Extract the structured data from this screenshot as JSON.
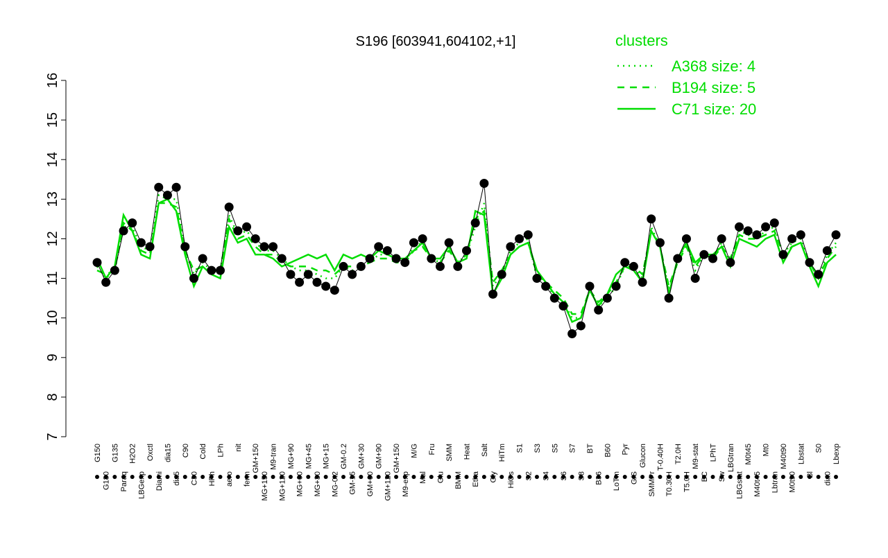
{
  "chart_data": {
    "type": "line",
    "title": "S196 [603941,604102,+1]",
    "legend_title": "clusters",
    "legend_color": "#00dd00",
    "point_color": "#000000",
    "categories": [
      "G150",
      "G180",
      "G135",
      "Paraq",
      "H2O2",
      "LBGexp",
      "Oxctl",
      "Diami",
      "dia15",
      "dia5",
      "C90",
      "C30",
      "Cold",
      "HPh",
      "LPh",
      "aero",
      "nit",
      "ferm",
      "GM+150",
      "MG+150",
      "M9-tran",
      "MG+120",
      "MG+90",
      "MG+60",
      "MG+45",
      "MG+30",
      "MG+15",
      "MG-0.2",
      "GM-0.2",
      "GM-15",
      "GM+30",
      "GM+60",
      "GM+90",
      "GM+120",
      "GM+150",
      "M9-exp",
      "M/G",
      "Mal",
      "Fru",
      "Glu",
      "SMM",
      "BMM",
      "Heat",
      "Etha",
      "Salt",
      "Gly",
      "HiTm",
      "HiOs",
      "S1",
      "S2",
      "S3",
      "S4",
      "S5",
      "S6",
      "S7",
      "S8",
      "BT",
      "B36",
      "B60",
      "LoTm",
      "Pyr",
      "G/S",
      "Glucon",
      "SMMPr",
      "T-0.40H",
      "T0.30H",
      "T2.0H",
      "T5.0H",
      "M9-stat",
      "BC",
      "LPhT",
      "Sw",
      "LBGtran",
      "LBGstat",
      "M0t45",
      "M40t45",
      "Mt0",
      "Lbtran",
      "M40t90",
      "M0t90",
      "Lbstat",
      "Bl",
      "S0",
      "dia0",
      "Lbexp"
    ],
    "values": [
      11.4,
      10.9,
      11.2,
      12.2,
      12.4,
      11.9,
      11.8,
      13.3,
      13.1,
      13.3,
      11.8,
      11.0,
      11.5,
      11.2,
      11.2,
      12.8,
      12.2,
      12.3,
      12.0,
      11.8,
      11.8,
      11.5,
      11.1,
      10.9,
      11.1,
      10.9,
      10.8,
      10.7,
      11.3,
      11.1,
      11.3,
      11.5,
      11.8,
      11.7,
      11.5,
      11.4,
      11.9,
      12.0,
      11.5,
      11.3,
      11.9,
      11.3,
      11.7,
      12.4,
      13.4,
      10.6,
      11.1,
      11.8,
      12.0,
      12.1,
      11.0,
      10.8,
      10.5,
      10.3,
      9.6,
      9.8,
      10.8,
      10.2,
      10.5,
      10.8,
      11.4,
      11.3,
      10.9,
      12.5,
      11.9,
      10.5,
      11.5,
      12.0,
      11.0,
      11.6,
      11.5,
      12.0,
      11.4,
      12.3,
      12.2,
      12.1,
      12.3,
      12.4,
      11.6,
      12.0,
      12.1,
      11.4,
      11.1,
      11.7,
      12.1
    ],
    "series": [
      {
        "name": "A368 size: 4",
        "dash": "2,6",
        "values": [
          11.3,
          11.0,
          11.2,
          12.3,
          12.3,
          11.8,
          11.7,
          13.1,
          13.0,
          13.0,
          11.7,
          11.1,
          11.4,
          11.2,
          11.2,
          12.6,
          12.1,
          12.2,
          11.9,
          11.7,
          11.7,
          11.5,
          11.3,
          11.2,
          11.2,
          11.1,
          11.0,
          11.0,
          11.3,
          11.2,
          11.3,
          11.4,
          11.6,
          11.6,
          11.5,
          11.4,
          11.8,
          11.9,
          11.5,
          11.4,
          11.8,
          11.4,
          11.6,
          12.3,
          12.9,
          10.8,
          11.1,
          11.7,
          11.9,
          12.0,
          11.0,
          10.8,
          10.6,
          10.4,
          10.0,
          10.0,
          10.7,
          10.3,
          10.5,
          10.8,
          11.3,
          11.3,
          11.0,
          12.3,
          11.8,
          10.7,
          11.4,
          11.9,
          11.2,
          11.6,
          11.5,
          11.9,
          11.4,
          12.2,
          12.1,
          12.0,
          12.2,
          12.3,
          11.6,
          11.9,
          12.0,
          11.4,
          11.0,
          11.6,
          11.9
        ]
      },
      {
        "name": "B194 size: 5",
        "dash": "10,8",
        "values": [
          11.2,
          11.1,
          11.2,
          12.4,
          12.2,
          11.7,
          11.6,
          12.9,
          12.9,
          12.8,
          11.7,
          11.2,
          11.3,
          11.2,
          11.2,
          12.5,
          12.0,
          12.1,
          11.8,
          11.6,
          11.6,
          11.4,
          11.3,
          11.3,
          11.3,
          11.2,
          11.2,
          11.1,
          11.3,
          11.3,
          11.3,
          11.4,
          11.5,
          11.5,
          11.4,
          11.4,
          11.7,
          11.8,
          11.5,
          11.4,
          11.7,
          11.4,
          11.6,
          12.5,
          12.7,
          10.9,
          11.2,
          11.6,
          11.8,
          11.9,
          11.1,
          10.9,
          10.7,
          10.5,
          10.1,
          10.1,
          10.7,
          10.4,
          10.6,
          10.9,
          11.3,
          11.3,
          11.1,
          12.2,
          11.8,
          10.8,
          11.4,
          11.8,
          11.3,
          11.6,
          11.5,
          11.8,
          11.5,
          12.1,
          12.0,
          12.0,
          12.1,
          12.2,
          11.6,
          11.8,
          11.9,
          11.4,
          11.0,
          11.5,
          11.8
        ]
      },
      {
        "name": "C71 size: 20",
        "dash": "",
        "values": [
          11.5,
          11.0,
          11.3,
          12.6,
          12.2,
          11.6,
          11.5,
          12.9,
          13.0,
          12.7,
          11.6,
          10.8,
          11.3,
          11.1,
          11.0,
          12.3,
          11.9,
          12.0,
          11.6,
          11.6,
          11.5,
          11.3,
          11.4,
          11.5,
          11.6,
          11.5,
          11.6,
          11.2,
          11.6,
          11.5,
          11.6,
          11.5,
          11.7,
          11.6,
          11.5,
          11.5,
          11.7,
          11.9,
          11.5,
          11.5,
          11.8,
          11.4,
          11.5,
          12.7,
          12.6,
          10.6,
          11.0,
          11.6,
          11.8,
          11.9,
          11.2,
          10.9,
          10.6,
          10.4,
          9.9,
          10.0,
          10.7,
          10.3,
          10.6,
          11.1,
          11.3,
          11.2,
          10.9,
          12.2,
          11.8,
          10.6,
          11.5,
          11.9,
          11.4,
          11.6,
          11.6,
          11.8,
          11.3,
          12.0,
          11.9,
          11.8,
          12.0,
          12.1,
          11.4,
          11.8,
          11.9,
          11.3,
          10.8,
          11.4,
          11.6
        ]
      }
    ],
    "line_color": "#00dd00",
    "ylim": [
      7,
      16
    ],
    "yticks": [
      7,
      8,
      9,
      10,
      11,
      12,
      13,
      14,
      15,
      16
    ]
  }
}
